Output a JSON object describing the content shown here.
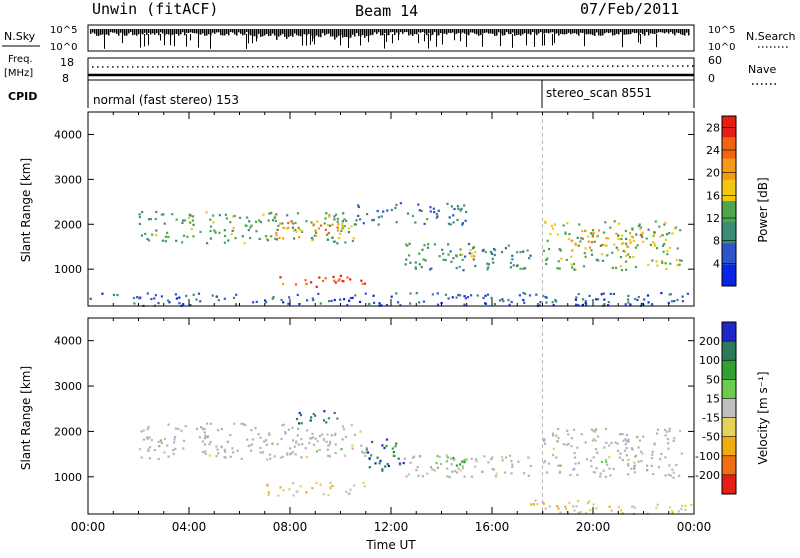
{
  "header": {
    "station": "Unwin (fitACF)",
    "beam": "Beam 14",
    "date": "07/Feb/2011"
  },
  "strip_labels": {
    "nsky": "N.Sky",
    "nsky_top": "10^5",
    "nsky_bottom": "10^0",
    "nsearch": "N.Search",
    "nsearch_top": "10^5",
    "nsearch_bottom": "10^0",
    "freq_1": "Freq.",
    "freq_2": "[MHz]",
    "freq_top": "18",
    "freq_bottom": "8",
    "nave": "Nave",
    "nave_top": "60",
    "nave_bottom": "0",
    "cpid": "CPID"
  },
  "cpid_segments": [
    {
      "label": "normal (fast stereo) 153",
      "start_hour": 0
    },
    {
      "label": "stereo_scan 8551",
      "start_hour": 18
    }
  ],
  "colors": {
    "power_scale": [
      "#0a24e6",
      "#2d55c8",
      "#3c8a78",
      "#4ca64c",
      "#f0c814",
      "#f59a14",
      "#f06414",
      "#e61e14"
    ],
    "velocity_scale": [
      "#1e28c8",
      "#2d7a5a",
      "#32a032",
      "#6ccc50",
      "#c0c0c0",
      "#e6d25a",
      "#f0aa14",
      "#f06e14",
      "#e61e14"
    ],
    "ground_scatter": "#b4b4b4"
  },
  "chart_data": [
    {
      "type": "heatmap",
      "panel": "power",
      "xlabel": "Time UT",
      "ylabel": "Slant Range [km]",
      "xlim": [
        "00:00",
        "24:00"
      ],
      "ylim": [
        180,
        4500
      ],
      "x_ticks": [
        "00:00",
        "04:00",
        "08:00",
        "12:00",
        "16:00",
        "20:00",
        "00:00"
      ],
      "y_ticks": [
        1000,
        2000,
        3000,
        4000
      ],
      "colorbar": {
        "label": "Power [dB]",
        "ticks": [
          4,
          8,
          12,
          16,
          20,
          24,
          28
        ],
        "range": [
          0,
          30
        ]
      },
      "echo_regions": [
        {
          "t0": 2.0,
          "t1": 10.5,
          "r0": 1600,
          "r1": 2300,
          "level": 12
        },
        {
          "t0": 7.0,
          "t1": 10.5,
          "r0": 1700,
          "r1": 2100,
          "level": 20
        },
        {
          "t0": 7.5,
          "t1": 11.0,
          "r0": 620,
          "r1": 880,
          "level": 26
        },
        {
          "t0": 12.5,
          "t1": 17.5,
          "r0": 1000,
          "r1": 1600,
          "level": 10
        },
        {
          "t0": 14.0,
          "t1": 15.5,
          "r0": 1200,
          "r1": 1500,
          "level": 16
        },
        {
          "t0": 10.5,
          "t1": 15.0,
          "r0": 2000,
          "r1": 2500,
          "level": 8
        },
        {
          "t0": 18.0,
          "t1": 23.5,
          "r0": 1000,
          "r1": 2100,
          "level": 14
        },
        {
          "t0": 19.0,
          "t1": 22.0,
          "r0": 1500,
          "r1": 1900,
          "level": 20
        },
        {
          "t0": 0.0,
          "t1": 24.0,
          "r0": 200,
          "r1": 500,
          "level": 6
        }
      ]
    },
    {
      "type": "heatmap",
      "panel": "velocity",
      "xlabel": "Time UT",
      "ylabel": "Slant Range [km]",
      "xlim": [
        "00:00",
        "24:00"
      ],
      "ylim": [
        180,
        4500
      ],
      "x_ticks": [
        "00:00",
        "04:00",
        "08:00",
        "12:00",
        "16:00",
        "20:00",
        "00:00"
      ],
      "y_ticks": [
        1000,
        2000,
        3000,
        4000
      ],
      "colorbar": {
        "label": "Velocity [m s⁻¹]",
        "ticks": [
          200,
          100,
          50,
          15,
          -15,
          -50,
          -100,
          -200
        ],
        "range": [
          -250,
          250
        ]
      },
      "echo_regions": [
        {
          "t0": 2.0,
          "t1": 11.0,
          "r0": 1400,
          "r1": 2200,
          "level": 0
        },
        {
          "t0": 7.0,
          "t1": 11.0,
          "r0": 600,
          "r1": 900,
          "level": -60
        },
        {
          "t0": 8.0,
          "t1": 10.0,
          "r0": 2200,
          "r1": 2500,
          "level": 180
        },
        {
          "t0": 11.0,
          "t1": 12.5,
          "r0": 1100,
          "r1": 1900,
          "level": 180
        },
        {
          "t0": 12.5,
          "t1": 17.5,
          "r0": 1000,
          "r1": 1500,
          "level": 0
        },
        {
          "t0": 13.5,
          "t1": 15.0,
          "r0": 1200,
          "r1": 1500,
          "level": 60
        },
        {
          "t0": 18.0,
          "t1": 23.5,
          "r0": 1000,
          "r1": 2100,
          "level": 0
        },
        {
          "t0": 17.5,
          "t1": 24.0,
          "r0": 200,
          "r1": 500,
          "level": -40
        }
      ]
    }
  ]
}
